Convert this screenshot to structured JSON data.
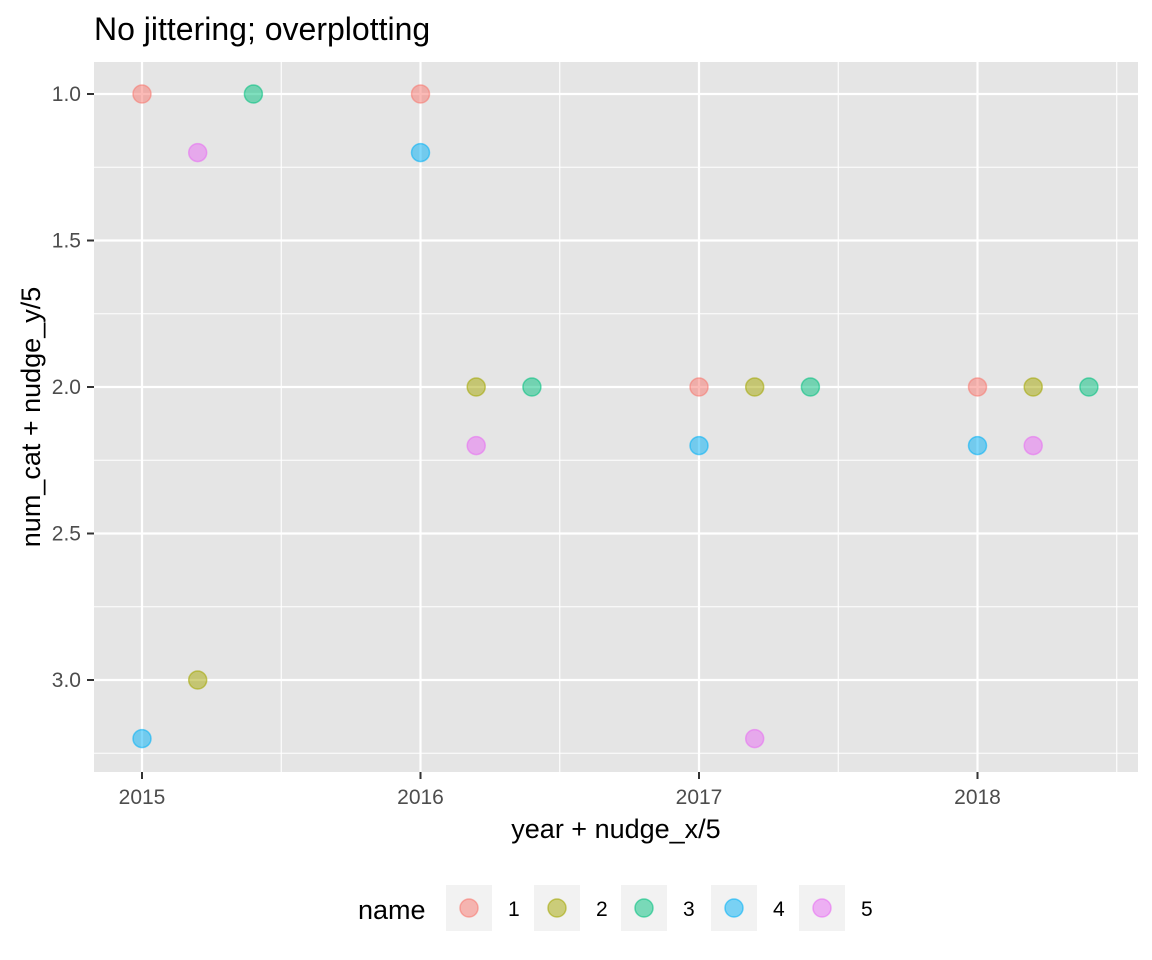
{
  "chart_data": {
    "type": "scatter",
    "title": "No jittering; overplotting",
    "xlabel": "year + nudge_x/5",
    "ylabel": "num_cat + nudge_y/5",
    "xlim": [
      2014.833,
      2018.567
    ],
    "ylim": [
      1.0,
      3.2
    ],
    "y_reversed": true,
    "x_ticks": [
      2015,
      2016,
      2017,
      2018
    ],
    "x_tick_labels": [
      "2015",
      "2016",
      "2017",
      "2018"
    ],
    "y_ticks": [
      1.0,
      1.5,
      2.0,
      2.5,
      3.0
    ],
    "y_tick_labels": [
      "1.0",
      "1.5",
      "2.0",
      "2.5",
      "3.0"
    ],
    "grid": true,
    "legend": {
      "title": "name",
      "position": "bottom"
    },
    "series": [
      {
        "name": "1",
        "color": "#F8766D",
        "points": [
          {
            "x": 2015.0,
            "y": 1.0
          },
          {
            "x": 2016.0,
            "y": 1.0
          },
          {
            "x": 2017.0,
            "y": 2.0
          },
          {
            "x": 2018.0,
            "y": 2.0
          }
        ]
      },
      {
        "name": "2",
        "color": "#A3A500",
        "points": [
          {
            "x": 2015.2,
            "y": 3.0
          },
          {
            "x": 2016.2,
            "y": 2.0
          },
          {
            "x": 2017.2,
            "y": 2.0
          },
          {
            "x": 2018.2,
            "y": 2.0
          }
        ]
      },
      {
        "name": "3",
        "color": "#00BF7D",
        "points": [
          {
            "x": 2015.4,
            "y": 1.0
          },
          {
            "x": 2016.4,
            "y": 2.0
          },
          {
            "x": 2017.4,
            "y": 2.0
          },
          {
            "x": 2018.4,
            "y": 2.0
          }
        ]
      },
      {
        "name": "4",
        "color": "#00B0F6",
        "points": [
          {
            "x": 2015.0,
            "y": 3.2
          },
          {
            "x": 2016.0,
            "y": 1.2
          },
          {
            "x": 2017.0,
            "y": 2.2
          },
          {
            "x": 2018.0,
            "y": 2.2
          }
        ]
      },
      {
        "name": "5",
        "color": "#E76BF3",
        "points": [
          {
            "x": 2015.2,
            "y": 1.2
          },
          {
            "x": 2016.2,
            "y": 2.2
          },
          {
            "x": 2017.2,
            "y": 3.2
          },
          {
            "x": 2018.2,
            "y": 2.2
          }
        ]
      }
    ],
    "colors": {
      "panel_background": "#E5E5E5",
      "grid": "#FFFFFF",
      "tick": "#333333",
      "legend_key_background": "#F2F2F2"
    }
  }
}
